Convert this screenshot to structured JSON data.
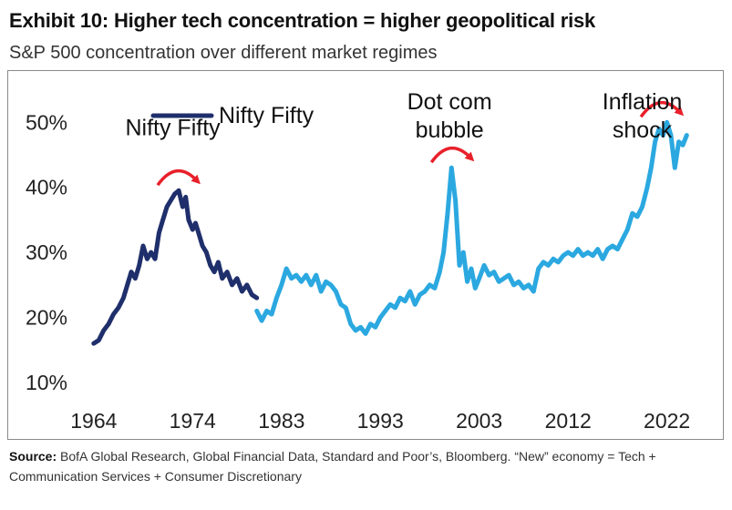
{
  "header": {
    "title": "Exhibit 10: Higher tech concentration = higher geopolitical risk",
    "subtitle": "S&P 500 concentration over different market regimes"
  },
  "footer": {
    "source_label": "Source:",
    "source_text": "BofA Global Research, Global Financial Data, Standard and Poor’s,  Bloomberg. “New” economy = Tech + Communication  Services + Consumer Discretionary"
  },
  "chart_data": {
    "type": "line",
    "title": "Exhibit 10: Higher tech concentration = higher geopolitical risk",
    "subtitle": "S&P 500 concentration over different market regimes",
    "xlabel": "",
    "ylabel": "",
    "x_ticks": [
      "1964",
      "1974",
      "1983",
      "1993",
      "2003",
      "2012",
      "2022"
    ],
    "x_tick_years": [
      1964,
      1974,
      1983,
      1993,
      2003,
      2012,
      2022
    ],
    "xlim": [
      1963,
      2026
    ],
    "y_ticks": [
      "10%",
      "20%",
      "30%",
      "40%",
      "50%"
    ],
    "ylim": [
      10,
      52
    ],
    "grid": false,
    "legend": {
      "position": "top-left",
      "entries": [
        "Nifty Fifty"
      ]
    },
    "colors": {
      "nifty": "#1f2f6b",
      "modern": "#2ba8e0",
      "arrow": "#e8202a"
    },
    "annotations": [
      {
        "lines": [
          "Nifty Fifty"
        ],
        "x": 1972,
        "y": 48
      },
      {
        "lines": [
          "Dot com",
          "bubble"
        ],
        "x": 2000,
        "y": 52
      },
      {
        "lines": [
          "Inflation",
          "shock"
        ],
        "x": 2019.5,
        "y": 52
      }
    ],
    "series": [
      {
        "name": "Nifty Fifty",
        "color": "#1f2f6b",
        "x": [
          1964.0,
          1964.5,
          1965.0,
          1965.5,
          1966.0,
          1966.5,
          1967.0,
          1967.4,
          1967.8,
          1968.2,
          1968.6,
          1969.0,
          1969.4,
          1969.8,
          1970.2,
          1970.6,
          1971.0,
          1971.4,
          1971.8,
          1972.2,
          1972.6,
          1973.0,
          1973.3,
          1973.6,
          1974.0,
          1974.3,
          1974.6,
          1975.0,
          1975.4,
          1975.8,
          1976.2,
          1976.6,
          1977.0,
          1977.5,
          1978.0,
          1978.5,
          1979.0,
          1979.5,
          1980.0,
          1980.5
        ],
        "y": [
          16,
          16.5,
          18,
          19,
          20.5,
          21.5,
          23,
          25,
          27,
          26,
          28,
          31,
          29,
          30,
          29,
          33,
          35,
          37,
          38,
          39,
          39.5,
          37,
          38.5,
          35,
          33.5,
          34.5,
          33,
          31,
          30,
          28,
          27,
          28.5,
          26,
          27,
          25,
          26,
          24,
          25,
          23.5,
          23
        ]
      },
      {
        "name": "",
        "color": "#2ba8e0",
        "x": [
          1980.5,
          1981.0,
          1981.5,
          1982.0,
          1982.5,
          1983.0,
          1983.5,
          1984.0,
          1984.5,
          1985.0,
          1985.5,
          1986.0,
          1986.5,
          1987.0,
          1987.5,
          1988.0,
          1988.5,
          1989.0,
          1989.5,
          1990.0,
          1990.5,
          1991.0,
          1991.5,
          1992.0,
          1992.5,
          1993.0,
          1993.5,
          1994.0,
          1994.5,
          1995.0,
          1995.5,
          1996.0,
          1996.5,
          1997.0,
          1997.5,
          1998.0,
          1998.5,
          1999.0,
          1999.4,
          1999.8,
          2000.2,
          2000.6,
          2001.0,
          2001.4,
          2001.8,
          2002.2,
          2002.6,
          2003.0,
          2003.5,
          2004.0,
          2004.5,
          2005.0,
          2005.5,
          2006.0,
          2006.5,
          2007.0,
          2007.5,
          2008.0,
          2008.5,
          2009.0,
          2009.5,
          2010.0,
          2010.5,
          2011.0,
          2011.5,
          2012.0,
          2012.5,
          2013.0,
          2013.5,
          2014.0,
          2014.5,
          2015.0,
          2015.5,
          2016.0,
          2016.5,
          2017.0,
          2017.5,
          2018.0,
          2018.5,
          2019.0,
          2019.5,
          2020.0,
          2020.4,
          2020.8,
          2021.2,
          2021.6,
          2022.0,
          2022.4,
          2022.8,
          2023.2,
          2023.6,
          2024.0
        ],
        "y": [
          21,
          19.5,
          21,
          20.5,
          23,
          25,
          27.5,
          26,
          26.5,
          25.5,
          26.5,
          25,
          26.5,
          24,
          25.5,
          25,
          24,
          22,
          21.5,
          19,
          18,
          18.5,
          17.5,
          19,
          18.5,
          20,
          21,
          22,
          21.5,
          23,
          22.5,
          24,
          22,
          23.5,
          24,
          25,
          24.5,
          27,
          30,
          36,
          43,
          38,
          28,
          30,
          25.5,
          27.5,
          24.5,
          26,
          28,
          26.5,
          27,
          25.5,
          26,
          26.5,
          25,
          25.5,
          24.5,
          25,
          24,
          27.5,
          28.5,
          28,
          29,
          28.5,
          29.5,
          30,
          29.5,
          30.5,
          29.5,
          30,
          29.5,
          30.5,
          29,
          30.5,
          31,
          30.5,
          32,
          33.5,
          36,
          35.5,
          37,
          40,
          43,
          47,
          49,
          48,
          50,
          48,
          43,
          47,
          46.5,
          48
        ]
      }
    ]
  }
}
